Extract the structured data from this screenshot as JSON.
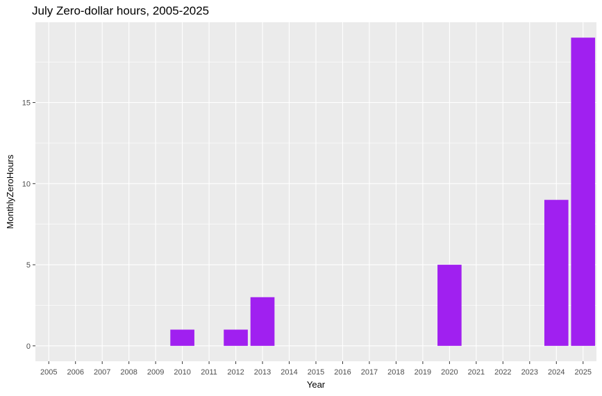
{
  "chart_data": {
    "type": "bar",
    "title": "July Zero-dollar hours, 2005-2025",
    "xlabel": "Year",
    "ylabel": "MonthlyZeroHours",
    "categories": [
      "2005",
      "2006",
      "2007",
      "2008",
      "2009",
      "2010",
      "2011",
      "2012",
      "2013",
      "2014",
      "2015",
      "2016",
      "2017",
      "2018",
      "2019",
      "2020",
      "2021",
      "2022",
      "2023",
      "2024",
      "2025"
    ],
    "values": [
      0,
      0,
      0,
      0,
      0,
      1,
      0,
      1,
      3,
      0,
      0,
      0,
      0,
      0,
      0,
      5,
      0,
      0,
      0,
      9,
      19
    ],
    "y_ticks": [
      0,
      5,
      10,
      15
    ],
    "ylim": [
      -0.95,
      19.95
    ],
    "grid": true,
    "legend": "none",
    "colors": {
      "bar": "#A020F0",
      "panel": "#EBEBEB",
      "grid": "#FFFFFF"
    }
  }
}
